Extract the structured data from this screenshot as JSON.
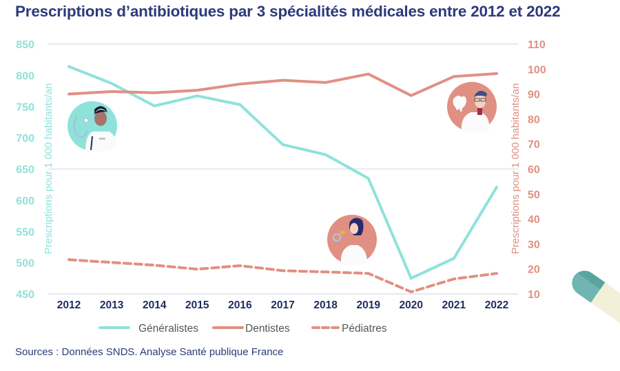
{
  "title": "Prescriptions d’antibiotiques par 3 spécialités médicales entre 2012 et 2022",
  "source": "Sources : Données SNDS. Analyse Santé publique France",
  "chart_data": {
    "type": "line",
    "title": "Prescriptions d’antibiotiques par 3 spécialités médicales entre 2012 et 2022",
    "x": [
      "2012",
      "2013",
      "2014",
      "2015",
      "2016",
      "2017",
      "2018",
      "2019",
      "2020",
      "2021",
      "2022"
    ],
    "ylabel_left": "Prescriptions pour 1 000 habitants/an",
    "ylabel_right": "Prescriptions pour 1 000 habitants/an",
    "ylim_left": [
      450,
      850
    ],
    "yticks_left": [
      450,
      500,
      550,
      600,
      650,
      700,
      750,
      800,
      850
    ],
    "ylim_right": [
      10,
      110
    ],
    "yticks_right": [
      10,
      20,
      30,
      40,
      50,
      60,
      70,
      80,
      90,
      100,
      110
    ],
    "grid": "horizontal at 450, 650, 850",
    "legend_position": "bottom",
    "series": [
      {
        "name": "Généralistes",
        "axis": "left",
        "style": "solid",
        "color": "#8fe2da",
        "values": [
          814,
          787,
          751,
          767,
          753,
          689,
          673,
          635,
          475,
          507,
          621
        ]
      },
      {
        "name": "Dentistes",
        "axis": "right",
        "style": "solid",
        "color": "#e09083",
        "values": [
          90,
          91,
          90.5,
          91.5,
          94,
          95.5,
          94.6,
          98,
          89.4,
          97,
          98.2
        ]
      },
      {
        "name": "Pédiatres",
        "axis": "right",
        "style": "dashed",
        "color": "#e09083",
        "values": [
          23.7,
          22.6,
          21.5,
          19.9,
          21.3,
          19.3,
          18.8,
          18.2,
          10.8,
          16,
          18.2
        ]
      }
    ]
  },
  "illustrations": [
    {
      "name": "generaliste-doctor-icon",
      "bg": "#8fe2da"
    },
    {
      "name": "dentist-icon",
      "bg": "#e09083"
    },
    {
      "name": "pediatrician-icon",
      "bg": "#e09083"
    },
    {
      "name": "pill-capsule-icon"
    }
  ]
}
